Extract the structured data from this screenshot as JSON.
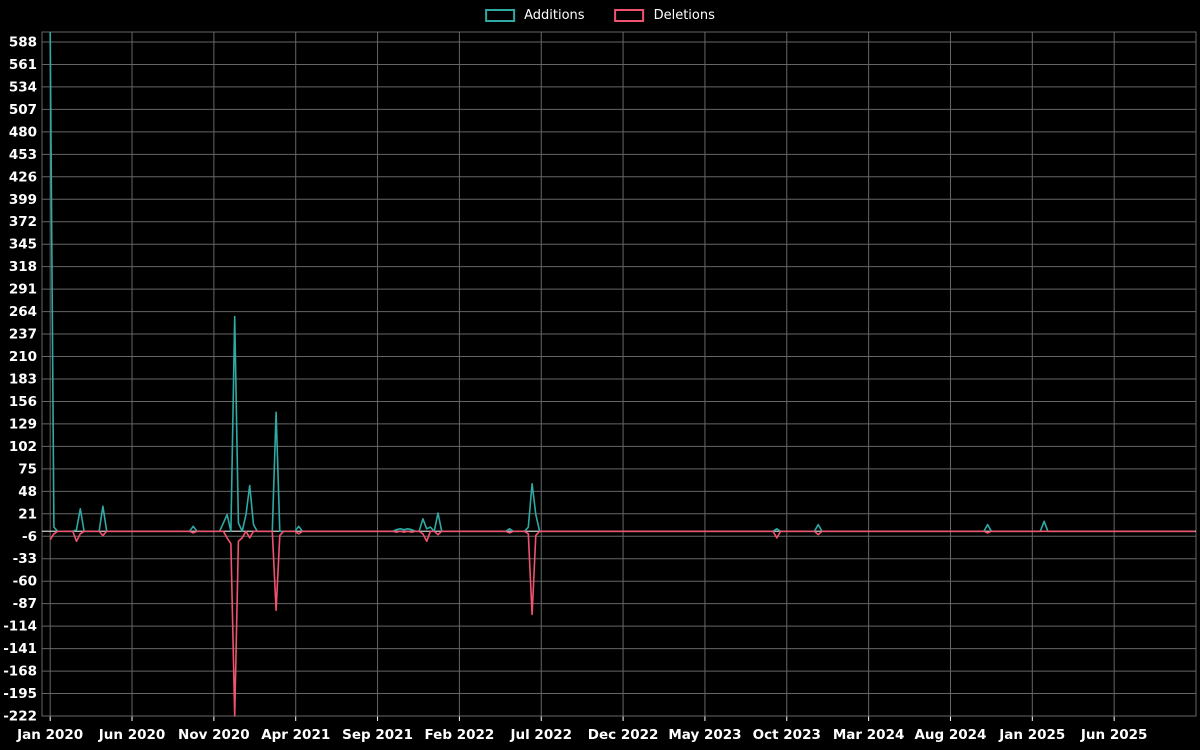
{
  "chart_data": {
    "type": "line",
    "title": "",
    "xlabel": "",
    "ylabel": "",
    "background": "#000000",
    "grid_color": "#666666",
    "axis_text_color": "#ffffff",
    "zero_line_color": "#cccccc",
    "x_unit": "weeks since Jan 2020 (month = week * 0.23)",
    "total_weeks": 304,
    "months_per_week": 0.23,
    "xlim_months": [
      -0.5,
      70
    ],
    "ylim": [
      -222,
      600
    ],
    "y_ticks": [
      588,
      561,
      534,
      507,
      480,
      453,
      426,
      399,
      372,
      345,
      318,
      291,
      264,
      237,
      210,
      183,
      156,
      129,
      102,
      75,
      48,
      21,
      -6,
      -33,
      -60,
      -87,
      -114,
      -141,
      -168,
      -195,
      -222
    ],
    "x_ticks": [
      {
        "month": 0,
        "label": "Jan 2020"
      },
      {
        "month": 5,
        "label": "Jun 2020"
      },
      {
        "month": 10,
        "label": "Nov 2020"
      },
      {
        "month": 15,
        "label": "Apr 2021"
      },
      {
        "month": 20,
        "label": "Sep 2021"
      },
      {
        "month": 25,
        "label": "Feb 2022"
      },
      {
        "month": 30,
        "label": "Jul 2022"
      },
      {
        "month": 35,
        "label": "Dec 2022"
      },
      {
        "month": 40,
        "label": "May 2023"
      },
      {
        "month": 45,
        "label": "Oct 2023"
      },
      {
        "month": 50,
        "label": "Mar 2024"
      },
      {
        "month": 55,
        "label": "Aug 2024"
      },
      {
        "month": 60,
        "label": "Jan 2025"
      },
      {
        "month": 65,
        "label": "Jun 2025"
      }
    ],
    "series": [
      {
        "name": "Additions",
        "color": "#2fa9a4",
        "points_sparse": {
          "0": 600,
          "1": 5,
          "7": 2,
          "8": 27,
          "14": 30,
          "38": 6,
          "46": 10,
          "47": 20,
          "49": 258,
          "50": 10,
          "52": 20,
          "53": 55,
          "54": 8,
          "60": 143,
          "66": 6,
          "92": 2,
          "93": 3,
          "94": 2,
          "95": 3,
          "96": 2,
          "99": 15,
          "100": 3,
          "101": 5,
          "103": 22,
          "122": 3,
          "127": 5,
          "128": 57,
          "129": 20,
          "193": 3,
          "204": 8,
          "249": 8,
          "264": 12
        }
      },
      {
        "name": "Deletions",
        "color": "#f0536e",
        "points_sparse": {
          "0": -10,
          "1": -3,
          "7": -12,
          "8": -3,
          "14": -5,
          "38": -2,
          "47": -8,
          "48": -15,
          "49": -222,
          "50": -12,
          "51": -8,
          "53": -8,
          "60": -95,
          "61": -5,
          "66": -3,
          "92": -1,
          "94": -1,
          "96": -1,
          "99": -3,
          "100": -12,
          "103": -4,
          "122": -2,
          "127": -3,
          "128": -100,
          "129": -5,
          "193": -8,
          "204": -4,
          "249": -2
        }
      }
    ]
  },
  "legend": {
    "items": [
      {
        "label": "Additions"
      },
      {
        "label": "Deletions"
      }
    ]
  }
}
